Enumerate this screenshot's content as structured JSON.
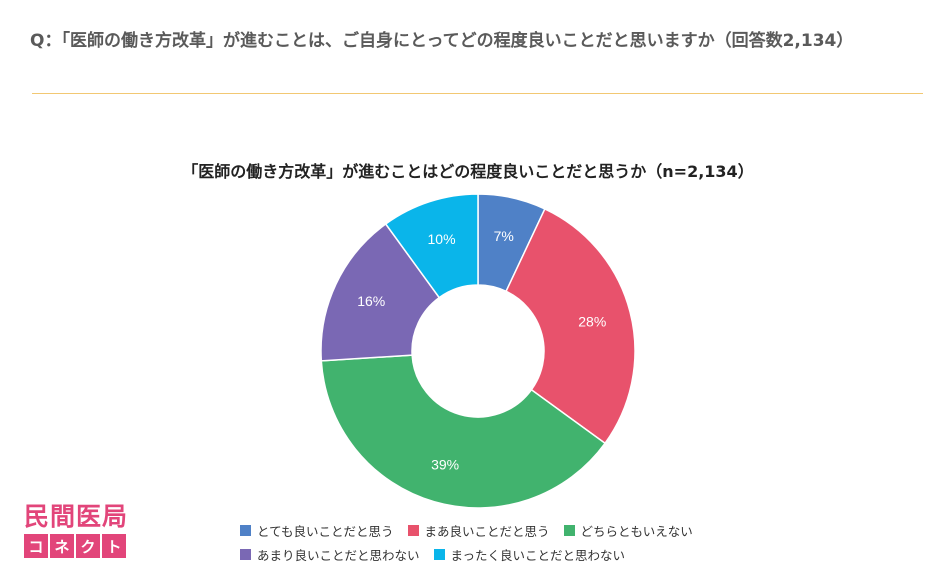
{
  "question": "Q：「医師の働き方改革」が進むことは、ご自身にとってどの程度良いことだと思いますか（回答数2,134）",
  "logo": {
    "top": "民間医局",
    "bottom": [
      "コ",
      "ネ",
      "ク",
      "ト"
    ]
  },
  "colors": {
    "divider": "#f2c873",
    "brand": "#e2457a"
  },
  "chart_data": {
    "type": "pie",
    "title": "「医師の働き方改革」が進むことはどの程度良いことだと思うか（n=2,134）",
    "unit": "%",
    "categories": [
      "とても良いことだと思う",
      "まあ良いことだと思う",
      "どちらともいえない",
      "あまり良いことだと思わない",
      "まったく良いことだと思わない"
    ],
    "values": [
      7,
      28,
      39,
      16,
      10
    ],
    "colors": [
      "#4f81c7",
      "#e8526c",
      "#41b36e",
      "#7a68b4",
      "#0ab5ea"
    ],
    "legend_position": "bottom"
  }
}
